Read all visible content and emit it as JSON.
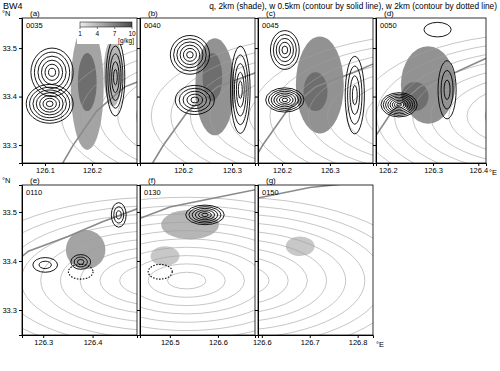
{
  "figure": {
    "label": "BW4",
    "title": "q, 2km (shade), w 0.5km (contour by solid line), w 2km (contour by dotted line)",
    "lat_label": "°N",
    "lon_label": "°E",
    "colorbar": {
      "range": [
        1,
        10
      ],
      "ticks": [
        1,
        4,
        7,
        10
      ],
      "label": "[g/kg]"
    },
    "coastline": {
      "lon": [
        126.1,
        126.16,
        126.21,
        126.27,
        126.35,
        126.42,
        126.5,
        126.6,
        126.7,
        126.8
      ],
      "lat": [
        33.2,
        33.3,
        33.37,
        33.42,
        33.45,
        33.48,
        33.51,
        33.53,
        33.55,
        33.56
      ]
    },
    "terrain": {
      "lon": 126.535,
      "lat": 33.36,
      "rlon": 0.4,
      "rlat": 0.17,
      "n": 10
    }
  },
  "chart_data": [
    {
      "type": "contour",
      "title": "(a)",
      "subtitle": "0035",
      "xlim": [
        126.051,
        126.296
      ],
      "ylim": [
        33.263,
        33.562
      ],
      "xticks": [
        126.1,
        126.2
      ],
      "yticks": [
        33.3,
        33.4,
        33.5
      ],
      "tick_labels": true,
      "shading": [
        {
          "lon": 126.19,
          "lat": 33.42,
          "rlon": 0.035,
          "rlat": 0.13,
          "q": 5
        },
        {
          "lon": 126.245,
          "lat": 33.45,
          "rlon": 0.02,
          "rlat": 0.07,
          "q": 4
        },
        {
          "lon": 126.19,
          "lat": 33.43,
          "rlon": 0.02,
          "rlat": 0.06,
          "q": 8
        }
      ],
      "solid": [
        {
          "lon": 126.115,
          "lat": 33.45,
          "rlon": 0.045,
          "rlat": 0.05,
          "n": 6
        },
        {
          "lon": 126.11,
          "lat": 33.385,
          "rlon": 0.05,
          "rlat": 0.04,
          "n": 7
        },
        {
          "lon": 126.25,
          "lat": 33.44,
          "rlon": 0.02,
          "rlat": 0.08,
          "n": 5
        }
      ],
      "dotted": []
    },
    {
      "type": "contour",
      "title": "(b)",
      "subtitle": "0040",
      "xlim": [
        126.112,
        126.347
      ],
      "ylim": [
        33.263,
        33.562
      ],
      "xticks": [
        126.2,
        126.3
      ],
      "yticks": [
        33.3,
        33.4,
        33.5
      ],
      "tick_labels": "x",
      "shading": [
        {
          "lon": 126.265,
          "lat": 33.42,
          "rlon": 0.04,
          "rlat": 0.1,
          "q": 6
        },
        {
          "lon": 126.26,
          "lat": 33.44,
          "rlon": 0.02,
          "rlat": 0.05,
          "q": 8
        }
      ],
      "solid": [
        {
          "lon": 126.214,
          "lat": 33.486,
          "rlon": 0.04,
          "rlat": 0.04,
          "n": 6
        },
        {
          "lon": 126.224,
          "lat": 33.393,
          "rlon": 0.04,
          "rlat": 0.03,
          "n": 5
        },
        {
          "lon": 126.317,
          "lat": 33.414,
          "rlon": 0.02,
          "rlat": 0.09,
          "n": 5
        }
      ],
      "dotted": []
    },
    {
      "type": "contour",
      "title": "(c)",
      "subtitle": "0045",
      "xlim": [
        126.15,
        126.39
      ],
      "ylim": [
        33.263,
        33.562
      ],
      "xticks": [
        126.2,
        126.3
      ],
      "yticks": [
        33.3,
        33.4,
        33.5
      ],
      "tick_labels": "x",
      "shading": [
        {
          "lon": 126.279,
          "lat": 33.424,
          "rlon": 0.05,
          "rlat": 0.1,
          "q": 6
        },
        {
          "lon": 126.27,
          "lat": 33.41,
          "rlon": 0.025,
          "rlat": 0.04,
          "q": 8
        }
      ],
      "solid": [
        {
          "lon": 126.206,
          "lat": 33.496,
          "rlon": 0.03,
          "rlat": 0.04,
          "n": 5
        },
        {
          "lon": 126.206,
          "lat": 33.393,
          "rlon": 0.04,
          "rlat": 0.025,
          "n": 7
        },
        {
          "lon": 126.352,
          "lat": 33.403,
          "rlon": 0.02,
          "rlat": 0.08,
          "n": 4
        }
      ],
      "dotted": []
    },
    {
      "type": "contour",
      "title": "(d)",
      "subtitle": "0050",
      "xlim": [
        126.174,
        126.417
      ],
      "ylim": [
        33.263,
        33.562
      ],
      "xticks": [
        126.2,
        126.3,
        126.4
      ],
      "yticks": [
        33.3,
        33.4,
        33.5
      ],
      "tick_labels": "x",
      "shading": [
        {
          "lon": 126.289,
          "lat": 33.424,
          "rlon": 0.06,
          "rlat": 0.08,
          "q": 6
        },
        {
          "lon": 126.26,
          "lat": 33.4,
          "rlon": 0.03,
          "rlat": 0.03,
          "q": 8
        }
      ],
      "solid": [
        {
          "lon": 126.225,
          "lat": 33.383,
          "rlon": 0.04,
          "rlat": 0.025,
          "n": 8
        },
        {
          "lon": 126.331,
          "lat": 33.414,
          "rlon": 0.02,
          "rlat": 0.06,
          "n": 3
        },
        {
          "lon": 126.31,
          "lat": 33.538,
          "rlon": 0.03,
          "rlat": 0.015,
          "n": 1
        }
      ],
      "dotted": []
    },
    {
      "type": "contour",
      "title": "(e)",
      "subtitle": "0110",
      "xlim": [
        126.257,
        126.49
      ],
      "ylim": [
        33.249,
        33.555
      ],
      "xticks": [
        126.3,
        126.4
      ],
      "yticks": [
        33.3,
        33.4,
        33.5
      ],
      "tick_labels": true,
      "shading": [
        {
          "lon": 126.386,
          "lat": 33.423,
          "rlon": 0.04,
          "rlat": 0.04,
          "q": 5
        }
      ],
      "solid": [
        {
          "lon": 126.304,
          "lat": 33.392,
          "rlon": 0.025,
          "rlat": 0.015,
          "n": 2
        },
        {
          "lon": 126.376,
          "lat": 33.398,
          "rlon": 0.02,
          "rlat": 0.015,
          "n": 3
        },
        {
          "lon": 126.453,
          "lat": 33.494,
          "rlon": 0.015,
          "rlat": 0.025,
          "n": 3
        }
      ],
      "dotted": [
        {
          "lon": 126.376,
          "lat": 33.378,
          "rlon": 0.025,
          "rlat": 0.015,
          "n": 1
        }
      ]
    },
    {
      "type": "contour",
      "title": "(f)",
      "subtitle": "0130",
      "xlim": [
        126.438,
        126.677
      ],
      "ylim": [
        33.249,
        33.555
      ],
      "xticks": [
        126.5,
        126.6
      ],
      "yticks": [
        33.3,
        33.4,
        33.5
      ],
      "tick_labels": "x",
      "shading": [
        {
          "lon": 126.542,
          "lat": 33.474,
          "rlon": 0.06,
          "rlat": 0.03,
          "q": 4
        },
        {
          "lon": 126.49,
          "lat": 33.41,
          "rlon": 0.03,
          "rlat": 0.02,
          "q": 3
        }
      ],
      "solid": [
        {
          "lon": 126.573,
          "lat": 33.494,
          "rlon": 0.04,
          "rlat": 0.02,
          "n": 6
        }
      ],
      "dotted": [
        {
          "lon": 126.48,
          "lat": 33.378,
          "rlon": 0.025,
          "rlat": 0.015,
          "n": 1
        }
      ]
    },
    {
      "type": "contour",
      "title": "(g)",
      "subtitle": "0150",
      "xlim": [
        126.592,
        126.832
      ],
      "ylim": [
        33.249,
        33.555
      ],
      "xticks": [
        126.6,
        126.7,
        126.8
      ],
      "yticks": [
        33.3,
        33.4,
        33.5
      ],
      "tick_labels": "x",
      "shading": [
        {
          "lon": 126.68,
          "lat": 33.43,
          "rlon": 0.03,
          "rlat": 0.02,
          "q": 3
        }
      ],
      "solid": [],
      "dotted": []
    }
  ]
}
